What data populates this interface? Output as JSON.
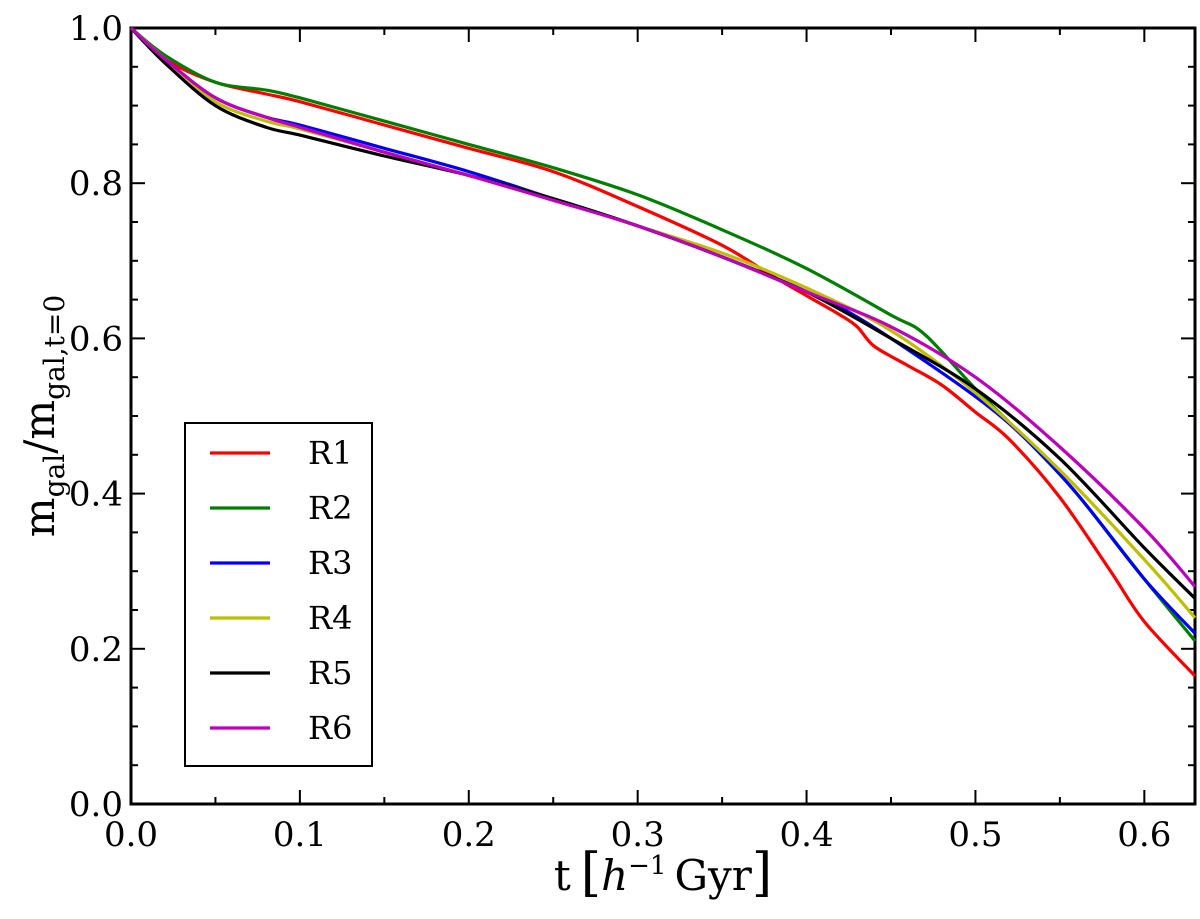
{
  "chart_data": {
    "type": "line",
    "title": "",
    "xlabel": {
      "main": "t",
      "unit_h": "h",
      "unit_exp": "−1",
      "unit_rest": "Gyr"
    },
    "ylabel": {
      "m1": "m",
      "sub1": "gal",
      "slash": "/",
      "m2": "m",
      "sub2": "gal,t=0"
    },
    "xlim": [
      0.0,
      0.63
    ],
    "ylim": [
      0.0,
      1.0
    ],
    "xticks": [
      "0.0",
      "0.1",
      "0.2",
      "0.3",
      "0.4",
      "0.5",
      "0.6"
    ],
    "yticks": [
      "0.0",
      "0.2",
      "0.4",
      "0.6",
      "0.8",
      "1.0"
    ],
    "legend_position": "lower-left",
    "series": [
      {
        "name": "R1",
        "color": "#ff0000",
        "x": [
          0,
          0.02,
          0.05,
          0.08,
          0.1,
          0.15,
          0.2,
          0.25,
          0.3,
          0.35,
          0.38,
          0.4,
          0.42,
          0.43,
          0.44,
          0.46,
          0.48,
          0.5,
          0.52,
          0.55,
          0.58,
          0.6,
          0.63
        ],
        "y": [
          1.0,
          0.96,
          0.93,
          0.915,
          0.905,
          0.875,
          0.845,
          0.815,
          0.77,
          0.72,
          0.68,
          0.655,
          0.63,
          0.615,
          0.59,
          0.565,
          0.54,
          0.505,
          0.47,
          0.395,
          0.3,
          0.235,
          0.165
        ]
      },
      {
        "name": "R2",
        "color": "#008000",
        "x": [
          0,
          0.02,
          0.05,
          0.08,
          0.1,
          0.15,
          0.2,
          0.25,
          0.3,
          0.35,
          0.4,
          0.45,
          0.47,
          0.5,
          0.53,
          0.56,
          0.6,
          0.63
        ],
        "y": [
          1.0,
          0.965,
          0.93,
          0.92,
          0.91,
          0.88,
          0.85,
          0.82,
          0.785,
          0.74,
          0.69,
          0.63,
          0.605,
          0.535,
          0.47,
          0.4,
          0.29,
          0.21
        ]
      },
      {
        "name": "R3",
        "color": "#0000ff",
        "x": [
          0,
          0.02,
          0.05,
          0.08,
          0.1,
          0.15,
          0.2,
          0.25,
          0.3,
          0.35,
          0.4,
          0.42,
          0.45,
          0.5,
          0.53,
          0.56,
          0.6,
          0.63
        ],
        "y": [
          1.0,
          0.96,
          0.91,
          0.885,
          0.875,
          0.845,
          0.815,
          0.78,
          0.745,
          0.705,
          0.66,
          0.64,
          0.6,
          0.525,
          0.47,
          0.4,
          0.29,
          0.22
        ]
      },
      {
        "name": "R4",
        "color": "#bfbf00",
        "x": [
          0,
          0.02,
          0.05,
          0.08,
          0.1,
          0.15,
          0.2,
          0.25,
          0.3,
          0.35,
          0.4,
          0.45,
          0.5,
          0.55,
          0.6,
          0.63
        ],
        "y": [
          1.0,
          0.96,
          0.905,
          0.88,
          0.87,
          0.84,
          0.81,
          0.78,
          0.745,
          0.71,
          0.665,
          0.61,
          0.53,
          0.43,
          0.315,
          0.24
        ]
      },
      {
        "name": "R5",
        "color": "#000000",
        "x": [
          0,
          0.02,
          0.05,
          0.08,
          0.1,
          0.15,
          0.2,
          0.25,
          0.3,
          0.35,
          0.4,
          0.45,
          0.5,
          0.55,
          0.6,
          0.63
        ],
        "y": [
          1.0,
          0.955,
          0.9,
          0.872,
          0.862,
          0.835,
          0.81,
          0.78,
          0.745,
          0.705,
          0.66,
          0.6,
          0.535,
          0.445,
          0.33,
          0.265
        ]
      },
      {
        "name": "R6",
        "color": "#bf00bf",
        "x": [
          0,
          0.02,
          0.05,
          0.08,
          0.1,
          0.15,
          0.2,
          0.25,
          0.3,
          0.35,
          0.4,
          0.45,
          0.5,
          0.55,
          0.6,
          0.63
        ],
        "y": [
          1.0,
          0.96,
          0.91,
          0.885,
          0.872,
          0.84,
          0.81,
          0.778,
          0.745,
          0.705,
          0.66,
          0.615,
          0.55,
          0.46,
          0.355,
          0.28
        ]
      }
    ]
  }
}
